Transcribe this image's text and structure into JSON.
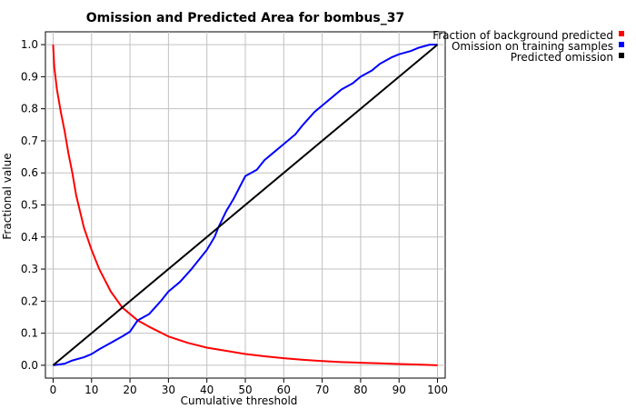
{
  "chart_data": {
    "type": "line",
    "title": "Omission and Predicted Area for bombus_37",
    "xlabel": "Cumulative threshold",
    "ylabel": "Fractional value",
    "xlim": [
      -2,
      102
    ],
    "ylim": [
      -0.04,
      1.04
    ],
    "xticks": [
      "0",
      "10",
      "20",
      "30",
      "40",
      "50",
      "60",
      "70",
      "80",
      "90",
      "100"
    ],
    "yticks": [
      "0.0",
      "0.1",
      "0.2",
      "0.3",
      "0.4",
      "0.5",
      "0.6",
      "0.7",
      "0.8",
      "0.9",
      "1.0"
    ],
    "grid": true,
    "legend_position": "right, outside plot",
    "series": [
      {
        "name": "Fraction of background predicted",
        "color": "#ff0000",
        "x": [
          0,
          0.3,
          1,
          2,
          3,
          4,
          5,
          6,
          8,
          10,
          12,
          15,
          18,
          20,
          22,
          25,
          30,
          35,
          40,
          45,
          50,
          55,
          60,
          65,
          70,
          75,
          80,
          85,
          90,
          95,
          100
        ],
        "y": [
          1.0,
          0.93,
          0.86,
          0.79,
          0.73,
          0.66,
          0.6,
          0.53,
          0.43,
          0.36,
          0.3,
          0.23,
          0.18,
          0.16,
          0.14,
          0.12,
          0.09,
          0.07,
          0.055,
          0.045,
          0.035,
          0.028,
          0.022,
          0.017,
          0.013,
          0.01,
          0.008,
          0.006,
          0.004,
          0.002,
          0.0
        ]
      },
      {
        "name": "Omission on training samples",
        "color": "#0000ff",
        "x": [
          0,
          3,
          5,
          8,
          10,
          12,
          15,
          18,
          20,
          22,
          25,
          28,
          30,
          33,
          36,
          40,
          42,
          43,
          45,
          47,
          50,
          53,
          55,
          57,
          60,
          63,
          65,
          68,
          70,
          73,
          75,
          78,
          80,
          83,
          85,
          88,
          90,
          93,
          95,
          98,
          100
        ],
        "y": [
          0.0,
          0.005,
          0.015,
          0.025,
          0.035,
          0.05,
          0.07,
          0.09,
          0.105,
          0.14,
          0.16,
          0.2,
          0.23,
          0.26,
          0.3,
          0.36,
          0.4,
          0.43,
          0.48,
          0.52,
          0.59,
          0.61,
          0.64,
          0.66,
          0.69,
          0.72,
          0.75,
          0.79,
          0.81,
          0.84,
          0.86,
          0.88,
          0.9,
          0.92,
          0.94,
          0.96,
          0.97,
          0.98,
          0.99,
          1.0,
          1.0
        ]
      },
      {
        "name": "Predicted omission",
        "color": "#000000",
        "x": [
          0,
          100
        ],
        "y": [
          0,
          1
        ]
      }
    ]
  }
}
